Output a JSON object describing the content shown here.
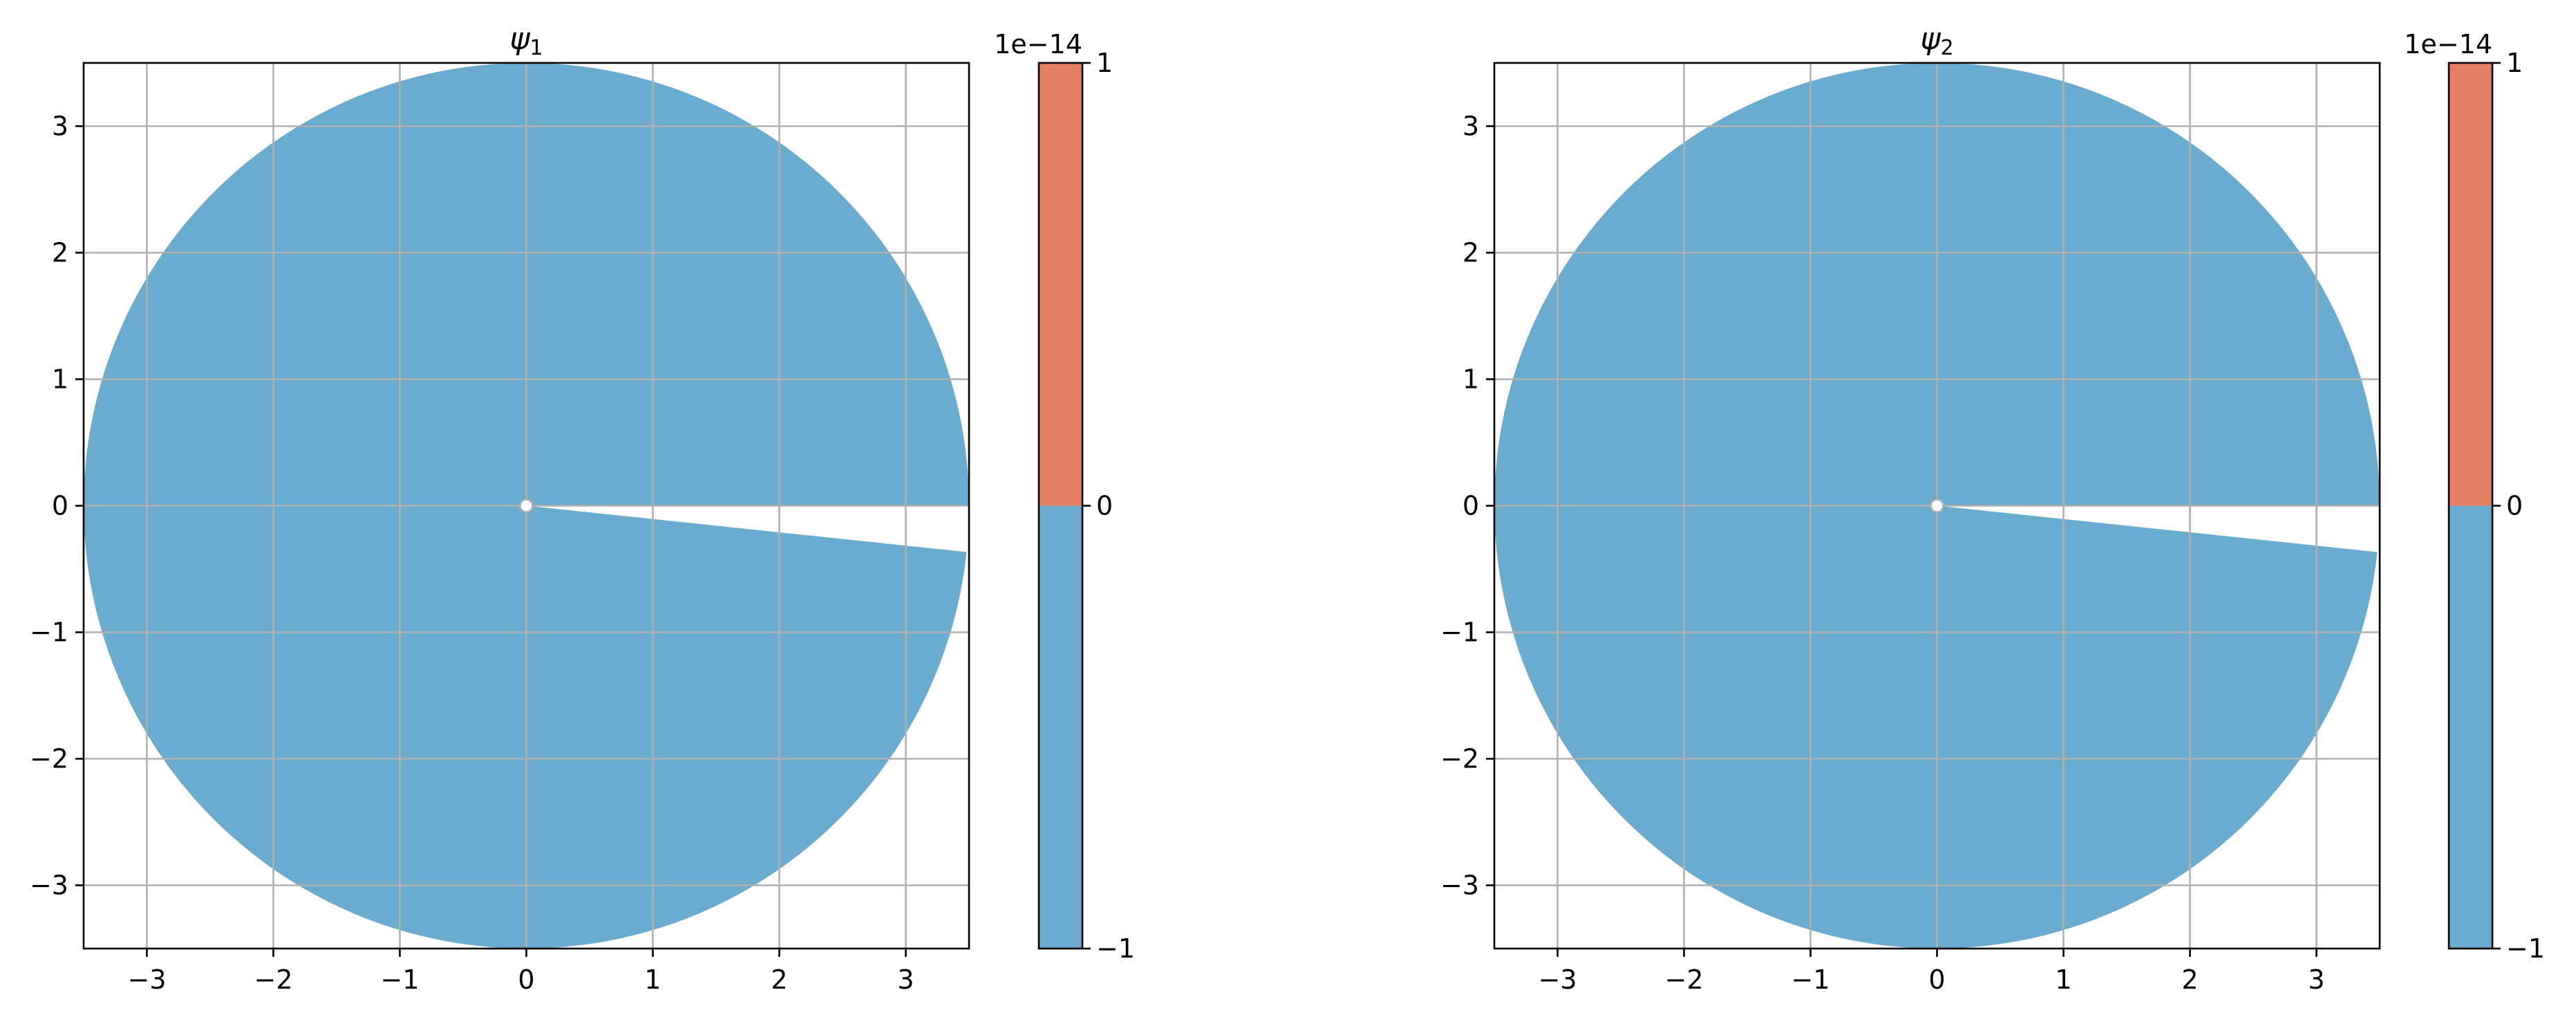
{
  "colors": {
    "fill_negative": "#6aabd0",
    "fill_positive": "#e57f62",
    "grid": "#b0b0b0",
    "axes": "#000000"
  },
  "chart_data": [
    {
      "type": "contourf",
      "title_symbol": "ψ",
      "title_subscript": "1",
      "xlim": [
        -3.5,
        3.5
      ],
      "ylim": [
        -3.5,
        3.5
      ],
      "xticks": [
        -3,
        -2,
        -1,
        0,
        1,
        2,
        3
      ],
      "yticks": [
        -3,
        -2,
        -1,
        0,
        1,
        2,
        3
      ],
      "xtick_labels": [
        "−3",
        "−2",
        "−1",
        "0",
        "1",
        "2",
        "3"
      ],
      "ytick_labels": [
        "−3",
        "−2",
        "−1",
        "0",
        "1",
        "2",
        "3"
      ],
      "grid": true,
      "domain": {
        "shape": "disk",
        "radius": 3.5,
        "notch_angle_deg": [
          -6,
          0
        ],
        "center_marker": [
          0,
          0
        ]
      },
      "colorbar": {
        "levels": [
          -1,
          0,
          1
        ],
        "tick_labels": [
          "−1",
          "0",
          "1"
        ],
        "offset": "1e−14",
        "colors": [
          "#6aabd0",
          "#e57f62"
        ]
      }
    },
    {
      "type": "contourf",
      "title_symbol": "ψ",
      "title_subscript": "2",
      "xlim": [
        -3.5,
        3.5
      ],
      "ylim": [
        -3.5,
        3.5
      ],
      "xticks": [
        -3,
        -2,
        -1,
        0,
        1,
        2,
        3
      ],
      "yticks": [
        -3,
        -2,
        -1,
        0,
        1,
        2,
        3
      ],
      "xtick_labels": [
        "−3",
        "−2",
        "−1",
        "0",
        "1",
        "2",
        "3"
      ],
      "ytick_labels": [
        "−3",
        "−2",
        "−1",
        "0",
        "1",
        "2",
        "3"
      ],
      "grid": true,
      "domain": {
        "shape": "disk",
        "radius": 3.5,
        "notch_angle_deg": [
          -6,
          0
        ],
        "center_marker": [
          0,
          0
        ]
      },
      "colorbar": {
        "levels": [
          -1,
          0,
          1
        ],
        "tick_labels": [
          "−1",
          "0",
          "1"
        ],
        "offset": "1e−14",
        "colors": [
          "#6aabd0",
          "#e57f62"
        ]
      }
    }
  ]
}
